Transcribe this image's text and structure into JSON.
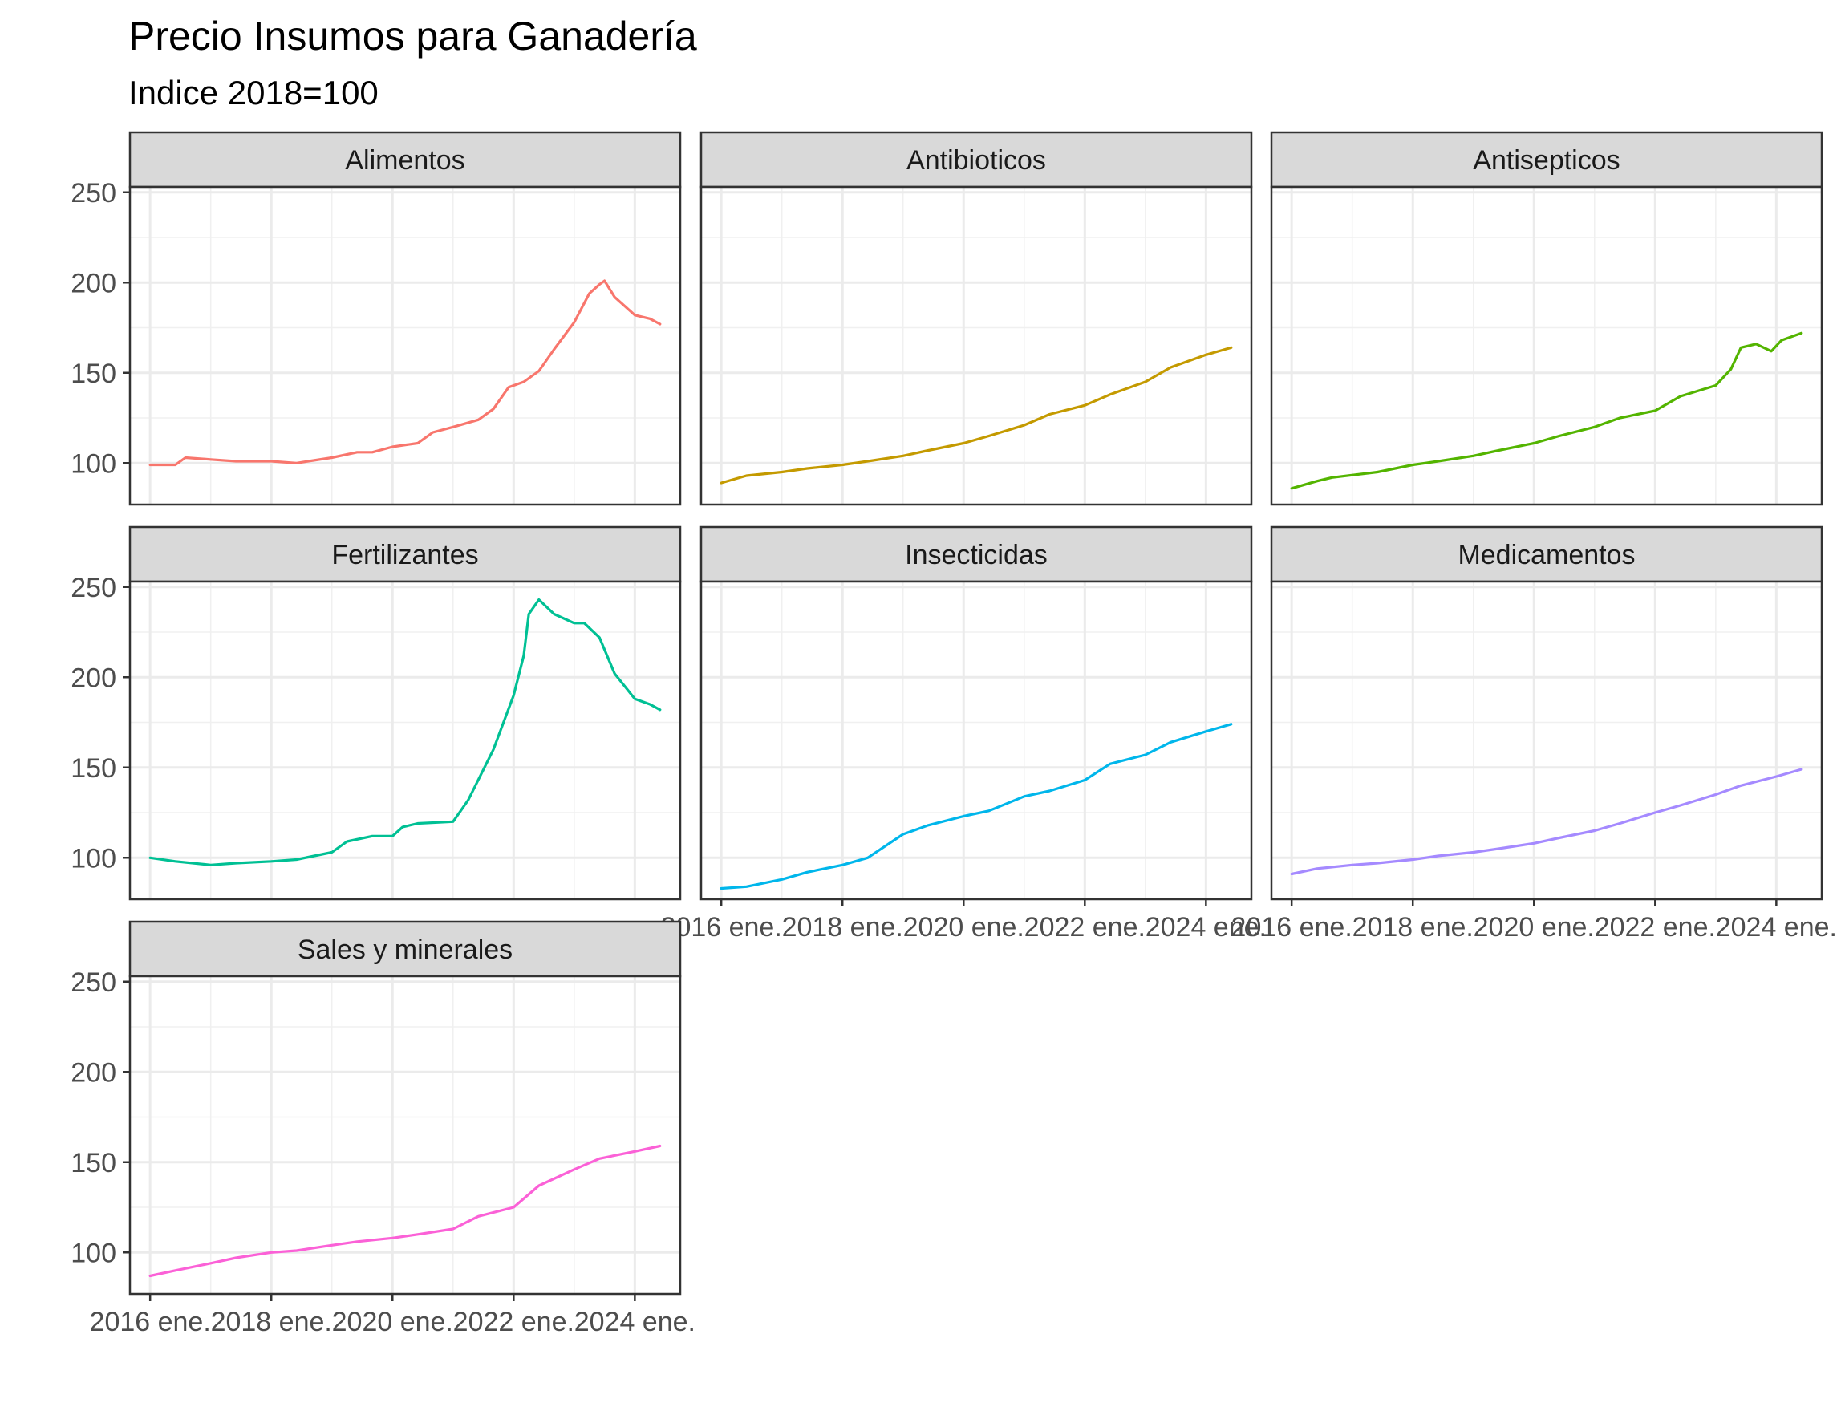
{
  "chart_data": {
    "type": "line",
    "title": "Precio Insumos para Ganadería",
    "subtitle": "Indice 2018=100",
    "xlabel": "",
    "ylabel": "",
    "facet_layout": "3 columns, shared axes",
    "grid": true,
    "legend": "none",
    "x_ticks": [
      "2016 ene.",
      "2018 ene.",
      "2020 ene.",
      "2022 ene.",
      "2024 ene."
    ],
    "x_tick_dates": [
      "2016-01",
      "2018-01",
      "2020-01",
      "2022-01",
      "2024-01"
    ],
    "xlim": [
      "2015-09",
      "2024-10"
    ],
    "y_ticks": [
      100,
      150,
      200,
      250
    ],
    "ylim": [
      77,
      253
    ],
    "series": [
      {
        "name": "Alimentos",
        "color": "#F8766D",
        "points": [
          [
            "2016-01",
            99
          ],
          [
            "2016-06",
            99
          ],
          [
            "2016-08",
            103
          ],
          [
            "2017-01",
            102
          ],
          [
            "2017-06",
            101
          ],
          [
            "2018-01",
            101
          ],
          [
            "2018-06",
            100
          ],
          [
            "2019-01",
            103
          ],
          [
            "2019-06",
            106
          ],
          [
            "2019-09",
            106
          ],
          [
            "2020-01",
            109
          ],
          [
            "2020-06",
            111
          ],
          [
            "2020-09",
            117
          ],
          [
            "2021-01",
            120
          ],
          [
            "2021-06",
            124
          ],
          [
            "2021-09",
            130
          ],
          [
            "2021-12",
            142
          ],
          [
            "2022-03",
            145
          ],
          [
            "2022-06",
            151
          ],
          [
            "2022-09",
            163
          ],
          [
            "2023-01",
            178
          ],
          [
            "2023-04",
            194
          ],
          [
            "2023-06",
            199
          ],
          [
            "2023-07",
            201
          ],
          [
            "2023-09",
            192
          ],
          [
            "2024-01",
            182
          ],
          [
            "2024-04",
            180
          ],
          [
            "2024-06",
            177
          ]
        ]
      },
      {
        "name": "Antibioticos",
        "color": "#C49A00",
        "points": [
          [
            "2016-01",
            89
          ],
          [
            "2016-06",
            93
          ],
          [
            "2017-01",
            95
          ],
          [
            "2017-06",
            97
          ],
          [
            "2018-01",
            99
          ],
          [
            "2018-06",
            101
          ],
          [
            "2019-01",
            104
          ],
          [
            "2019-06",
            107
          ],
          [
            "2020-01",
            111
          ],
          [
            "2020-06",
            115
          ],
          [
            "2021-01",
            121
          ],
          [
            "2021-06",
            127
          ],
          [
            "2022-01",
            132
          ],
          [
            "2022-06",
            138
          ],
          [
            "2023-01",
            145
          ],
          [
            "2023-06",
            153
          ],
          [
            "2024-01",
            160
          ],
          [
            "2024-06",
            164
          ]
        ]
      },
      {
        "name": "Antisepticos",
        "color": "#53B400",
        "points": [
          [
            "2016-01",
            86
          ],
          [
            "2016-06",
            90
          ],
          [
            "2016-09",
            92
          ],
          [
            "2017-06",
            95
          ],
          [
            "2018-01",
            99
          ],
          [
            "2018-06",
            101
          ],
          [
            "2019-01",
            104
          ],
          [
            "2019-06",
            107
          ],
          [
            "2020-01",
            111
          ],
          [
            "2020-06",
            115
          ],
          [
            "2021-01",
            120
          ],
          [
            "2021-06",
            125
          ],
          [
            "2022-01",
            129
          ],
          [
            "2022-06",
            137
          ],
          [
            "2023-01",
            143
          ],
          [
            "2023-04",
            152
          ],
          [
            "2023-06",
            164
          ],
          [
            "2023-09",
            166
          ],
          [
            "2023-12",
            162
          ],
          [
            "2024-02",
            168
          ],
          [
            "2024-06",
            172
          ]
        ]
      },
      {
        "name": "Fertilizantes",
        "color": "#00C094",
        "points": [
          [
            "2016-01",
            100
          ],
          [
            "2016-06",
            98
          ],
          [
            "2017-01",
            96
          ],
          [
            "2017-06",
            97
          ],
          [
            "2018-01",
            98
          ],
          [
            "2018-06",
            99
          ],
          [
            "2019-01",
            103
          ],
          [
            "2019-04",
            109
          ],
          [
            "2019-09",
            112
          ],
          [
            "2020-01",
            112
          ],
          [
            "2020-03",
            117
          ],
          [
            "2020-06",
            119
          ],
          [
            "2021-01",
            120
          ],
          [
            "2021-04",
            132
          ],
          [
            "2021-09",
            160
          ],
          [
            "2022-01",
            190
          ],
          [
            "2022-03",
            212
          ],
          [
            "2022-04",
            235
          ],
          [
            "2022-06",
            243
          ],
          [
            "2022-09",
            235
          ],
          [
            "2023-01",
            230
          ],
          [
            "2023-03",
            230
          ],
          [
            "2023-06",
            222
          ],
          [
            "2023-09",
            202
          ],
          [
            "2024-01",
            188
          ],
          [
            "2024-04",
            185
          ],
          [
            "2024-06",
            182
          ]
        ]
      },
      {
        "name": "Insecticidas",
        "color": "#00B6EB",
        "points": [
          [
            "2016-01",
            83
          ],
          [
            "2016-06",
            84
          ],
          [
            "2017-01",
            88
          ],
          [
            "2017-06",
            92
          ],
          [
            "2018-01",
            96
          ],
          [
            "2018-06",
            100
          ],
          [
            "2019-01",
            113
          ],
          [
            "2019-06",
            118
          ],
          [
            "2020-01",
            123
          ],
          [
            "2020-06",
            126
          ],
          [
            "2021-01",
            134
          ],
          [
            "2021-06",
            137
          ],
          [
            "2022-01",
            143
          ],
          [
            "2022-06",
            152
          ],
          [
            "2023-01",
            157
          ],
          [
            "2023-06",
            164
          ],
          [
            "2024-01",
            170
          ],
          [
            "2024-06",
            174
          ]
        ]
      },
      {
        "name": "Medicamentos",
        "color": "#A58AFF",
        "points": [
          [
            "2016-01",
            91
          ],
          [
            "2016-06",
            94
          ],
          [
            "2017-01",
            96
          ],
          [
            "2017-06",
            97
          ],
          [
            "2018-01",
            99
          ],
          [
            "2018-06",
            101
          ],
          [
            "2019-01",
            103
          ],
          [
            "2019-06",
            105
          ],
          [
            "2020-01",
            108
          ],
          [
            "2020-06",
            111
          ],
          [
            "2021-01",
            115
          ],
          [
            "2021-06",
            119
          ],
          [
            "2022-01",
            125
          ],
          [
            "2022-06",
            129
          ],
          [
            "2023-01",
            135
          ],
          [
            "2023-06",
            140
          ],
          [
            "2024-01",
            145
          ],
          [
            "2024-06",
            149
          ]
        ]
      },
      {
        "name": "Sales y minerales",
        "color": "#FB61D7",
        "points": [
          [
            "2016-01",
            87
          ],
          [
            "2016-06",
            90
          ],
          [
            "2017-01",
            94
          ],
          [
            "2017-06",
            97
          ],
          [
            "2018-01",
            100
          ],
          [
            "2018-06",
            101
          ],
          [
            "2019-01",
            104
          ],
          [
            "2019-06",
            106
          ],
          [
            "2020-01",
            108
          ],
          [
            "2020-06",
            110
          ],
          [
            "2021-01",
            113
          ],
          [
            "2021-06",
            120
          ],
          [
            "2022-01",
            125
          ],
          [
            "2022-06",
            137
          ],
          [
            "2023-01",
            146
          ],
          [
            "2023-06",
            152
          ],
          [
            "2024-01",
            156
          ],
          [
            "2024-06",
            159
          ]
        ]
      }
    ]
  }
}
